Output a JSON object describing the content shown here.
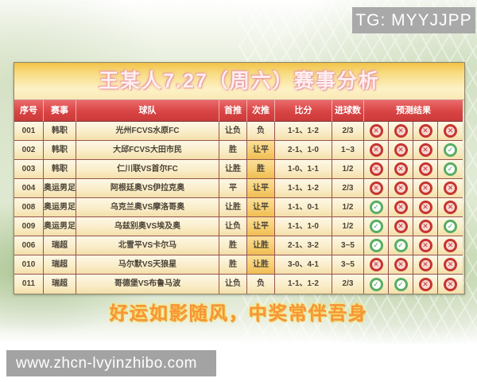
{
  "badge_tg": "TG: MYYJJPP",
  "title": "王某人7.27（周六）赛事分析",
  "slogan": "好运如影随风，中奖常伴吾身",
  "footer_url": "www.zhcn-lvyinzhibo.com",
  "colors": {
    "header_red": "#d94444",
    "title_gold": "#f2c347",
    "highlight_yellow": "#f6cd6e",
    "success_green": "#58ae62",
    "fail_red": "#c6352f",
    "badge_gray": "#a9a9a9"
  },
  "table": {
    "headers": [
      "序号",
      "赛事",
      "球队",
      "首推",
      "次推",
      "比分",
      "进球数",
      "预测结果"
    ],
    "rows": [
      {
        "no": "001",
        "league": "韩职",
        "teams": "光州FCVS水原FC",
        "first": "让负",
        "second": "负",
        "second_hl": false,
        "score": "1-1、1-2",
        "goals": "2/3",
        "results": [
          "cross",
          "cross",
          "cross",
          "cross"
        ]
      },
      {
        "no": "002",
        "league": "韩职",
        "teams": "大邱FCVS大田市民",
        "first": "胜",
        "second": "让平",
        "second_hl": true,
        "score": "2-1、1-0",
        "goals": "1~3",
        "results": [
          "cross",
          "cross",
          "cross",
          "check"
        ]
      },
      {
        "no": "003",
        "league": "韩职",
        "teams": "仁川联VS首尔FC",
        "first": "让胜",
        "second": "胜",
        "second_hl": true,
        "score": "1-0、1-1",
        "goals": "1/2",
        "results": [
          "cross",
          "cross",
          "cross",
          "check"
        ]
      },
      {
        "no": "004",
        "league": "奥运男足",
        "teams": "阿根廷奥VS伊拉克奥",
        "first": "平",
        "second": "让平",
        "second_hl": true,
        "score": "1-1、1-2",
        "goals": "2/3",
        "results": [
          "cross",
          "cross",
          "cross",
          "cross"
        ]
      },
      {
        "no": "008",
        "league": "奥运男足",
        "teams": "乌克兰奥VS摩洛哥奥",
        "first": "让胜",
        "second": "让平",
        "second_hl": true,
        "score": "1-1、0-1",
        "goals": "1/2",
        "results": [
          "check",
          "cross",
          "cross",
          "cross"
        ]
      },
      {
        "no": "009",
        "league": "奥运男足",
        "teams": "乌兹别奥VS埃及奥",
        "first": "让负",
        "second": "让平",
        "second_hl": true,
        "score": "1-1、1-0",
        "goals": "1/2",
        "results": [
          "check",
          "cross",
          "cross",
          "check"
        ]
      },
      {
        "no": "006",
        "league": "瑞超",
        "teams": "北雪平VS卡尔马",
        "first": "胜",
        "second": "让胜",
        "second_hl": true,
        "score": "2-1、3-2",
        "goals": "3~5",
        "results": [
          "check",
          "check",
          "cross",
          "cross"
        ]
      },
      {
        "no": "010",
        "league": "瑞超",
        "teams": "马尔默VS天狼星",
        "first": "胜",
        "second": "让胜",
        "second_hl": true,
        "score": "3-0、4-1",
        "goals": "3~5",
        "results": [
          "cross",
          "cross",
          "cross",
          "cross"
        ]
      },
      {
        "no": "011",
        "league": "瑞超",
        "teams": "哥德堡VS布鲁马波",
        "first": "让负",
        "second": "负",
        "second_hl": false,
        "score": "1-1、1-2",
        "goals": "2/3",
        "results": [
          "check",
          "check",
          "cross",
          "cross"
        ]
      }
    ]
  }
}
